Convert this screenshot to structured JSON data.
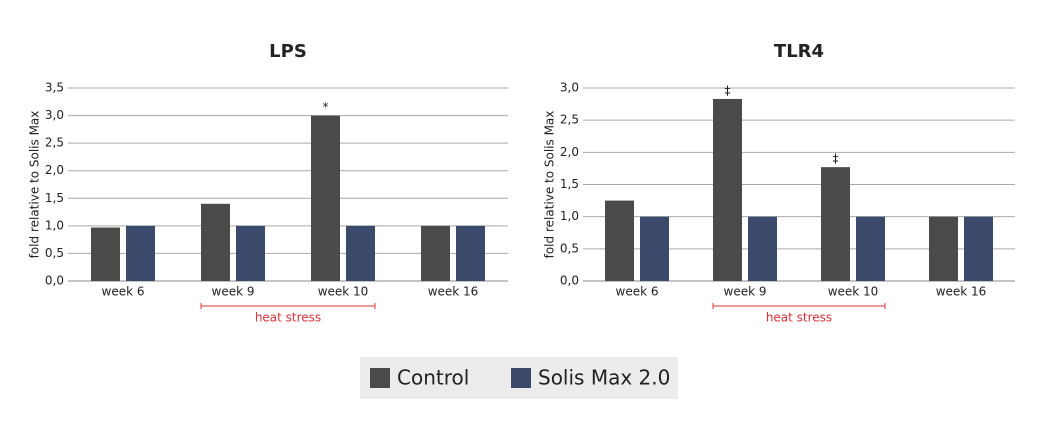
{
  "chart_data": [
    {
      "type": "bar",
      "title": "LPS",
      "y_label": "fold relative to Solis Max",
      "categories": [
        "week 6",
        "week 9",
        "week 10",
        "week 16"
      ],
      "series": [
        {
          "name": "Control",
          "color": "#4a4a48",
          "values": [
            0.97,
            1.4,
            3.0,
            1.0
          ]
        },
        {
          "name": "Solis Max 2.0",
          "color": "#3b4a6b",
          "values": [
            1.0,
            1.0,
            1.0,
            1.0
          ]
        }
      ],
      "ylim": [
        0,
        3.5
      ],
      "yticks": [
        {
          "value": 0,
          "label": "0,0"
        },
        {
          "value": 0.5,
          "label": "0,5"
        },
        {
          "value": 1,
          "label": "1,0"
        },
        {
          "value": 1.5,
          "label": "1,5"
        },
        {
          "value": 2,
          "label": "2,0"
        },
        {
          "value": 2.5,
          "label": "2,5"
        },
        {
          "value": 3,
          "label": "3,0"
        },
        {
          "value": 3.5,
          "label": "3,5"
        }
      ],
      "grid": true,
      "annotations": [
        {
          "text": "*",
          "category": "week 10",
          "series": "Control"
        }
      ],
      "bracket": {
        "label": "heat stress",
        "from": "week 9",
        "to": "week 10",
        "color": "#d9333b"
      }
    },
    {
      "type": "bar",
      "title": "TLR4",
      "y_label": "fold relative to Solis Max",
      "categories": [
        "week 6",
        "week 9",
        "week 10",
        "week 16"
      ],
      "series": [
        {
          "name": "Control",
          "color": "#4a4a48",
          "values": [
            1.25,
            2.83,
            1.77,
            1.0
          ]
        },
        {
          "name": "Solis Max 2.0",
          "color": "#3b4a6b",
          "values": [
            1.0,
            1.0,
            1.0,
            1.0
          ]
        }
      ],
      "ylim": [
        0,
        3.0
      ],
      "yticks": [
        {
          "value": 0,
          "label": "0,0"
        },
        {
          "value": 0.5,
          "label": "0,5"
        },
        {
          "value": 1,
          "label": "1,0"
        },
        {
          "value": 1.5,
          "label": "1,5"
        },
        {
          "value": 2,
          "label": "2,0"
        },
        {
          "value": 2.5,
          "label": "2,5"
        },
        {
          "value": 3,
          "label": "3,0"
        }
      ],
      "grid": true,
      "annotations": [
        {
          "text": "‡",
          "category": "week 9",
          "series": "Control"
        },
        {
          "text": "‡",
          "category": "week 10",
          "series": "Control"
        }
      ],
      "bracket": {
        "label": "heat stress",
        "from": "week 9",
        "to": "week 10",
        "color": "#d9333b"
      }
    }
  ]
}
